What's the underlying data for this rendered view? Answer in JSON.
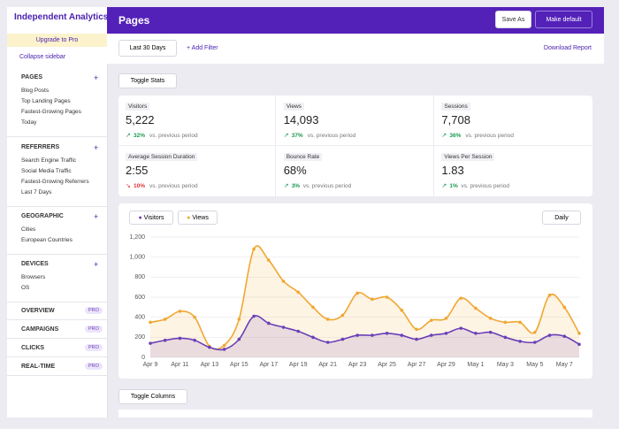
{
  "sidebar": {
    "brand": "Independent Analytics",
    "upgrade": "Upgrade to Pro",
    "collapse": "Collapse sidebar",
    "sections": [
      {
        "title": "PAGES",
        "items": [
          "Blog Posts",
          "Top Landing Pages",
          "Fastest-Growing Pages",
          "Today"
        ]
      },
      {
        "title": "REFERRERS",
        "items": [
          "Search Engine Traffic",
          "Social Media Traffic",
          "Fastest-Growing Referrers",
          "Last 7 Days"
        ]
      },
      {
        "title": "GEOGRAPHIC",
        "items": [
          "Cities",
          "European Countries"
        ]
      },
      {
        "title": "DEVICES",
        "items": [
          "Browsers",
          "OS"
        ]
      }
    ],
    "pro_sections": [
      {
        "title": "OVERVIEW",
        "badge": "PRO"
      },
      {
        "title": "CAMPAIGNS",
        "badge": "PRO"
      },
      {
        "title": "CLICKS",
        "badge": "PRO"
      },
      {
        "title": "REAL-TIME",
        "badge": "PRO"
      }
    ]
  },
  "header": {
    "title": "Pages",
    "save": "Save As",
    "default": "Make default"
  },
  "toolbar": {
    "range": "Last 30 Days",
    "filter": "+ Add Filter",
    "download": "Download Report",
    "toggle_stats": "Toggle Stats",
    "toggle_columns": "Toggle Columns"
  },
  "stats": [
    {
      "label": "Visitors",
      "value": "5,222",
      "change": "32%",
      "trend": "up",
      "note": "vs. previous period"
    },
    {
      "label": "Views",
      "value": "14,093",
      "change": "37%",
      "trend": "up",
      "note": "vs. previous period"
    },
    {
      "label": "Sessions",
      "value": "7,708",
      "change": "36%",
      "trend": "up",
      "note": "vs. previous period"
    },
    {
      "label": "Average Session Duration",
      "value": "2:55",
      "change": "10%",
      "trend": "down",
      "note": "vs. previous period"
    },
    {
      "label": "Bounce Rate",
      "value": "68%",
      "change": "3%",
      "trend": "up",
      "note": "vs. previous period"
    },
    {
      "label": "Views Per Session",
      "value": "1.83",
      "change": "1%",
      "trend": "up",
      "note": "vs. previous period"
    }
  ],
  "chart": {
    "type": "line",
    "interval": "Daily",
    "categories": [
      "Apr 9",
      null,
      "Apr 11",
      null,
      "Apr 13",
      null,
      "Apr 15",
      null,
      "Apr 17",
      null,
      "Apr 19",
      null,
      "Apr 21",
      null,
      "Apr 23",
      null,
      "Apr 25",
      null,
      "Apr 27",
      null,
      "Apr 29",
      null,
      "May 1",
      null,
      "May 3",
      null,
      "May 5",
      null,
      "May 7",
      null
    ],
    "series": [
      {
        "name": "Visitors",
        "color": "#6b3fb8",
        "values": [
          140,
          170,
          190,
          170,
          100,
          80,
          180,
          410,
          340,
          300,
          260,
          200,
          150,
          180,
          220,
          220,
          240,
          220,
          180,
          220,
          240,
          290,
          240,
          250,
          200,
          160,
          150,
          220,
          210,
          130
        ]
      },
      {
        "name": "Views",
        "color": "#f0a732",
        "values": [
          350,
          380,
          460,
          400,
          110,
          120,
          380,
          1080,
          970,
          760,
          650,
          500,
          380,
          420,
          640,
          580,
          600,
          470,
          280,
          370,
          390,
          590,
          490,
          390,
          350,
          350,
          250,
          620,
          500,
          240
        ]
      }
    ],
    "ylim": [
      0,
      1200
    ],
    "yticks": [
      0,
      200,
      400,
      600,
      800,
      {
        "value": 1000,
        "label": "1,000"
      },
      {
        "value": 1200,
        "label": "1,200"
      }
    ],
    "grid": true
  }
}
